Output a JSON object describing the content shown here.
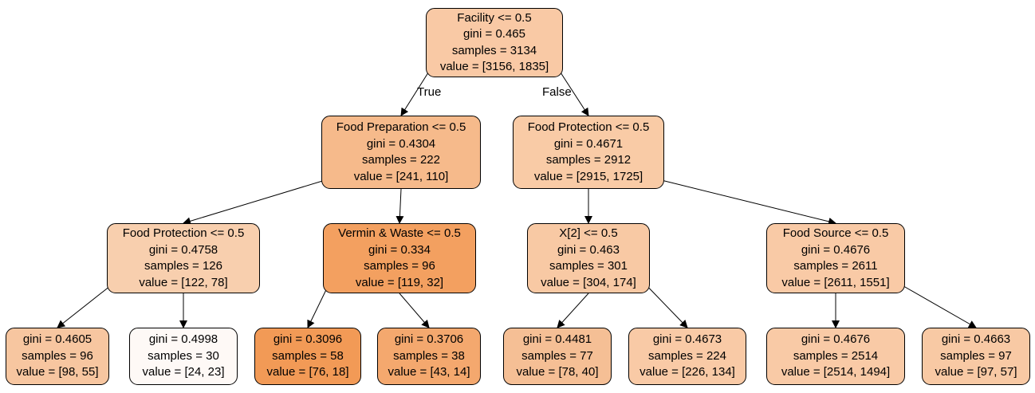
{
  "nodes": [
    {
      "id": "n0",
      "lines": [
        "Facility <= 0.5",
        "gini = 0.465",
        "samples = 3134",
        "value = [3156, 1835]"
      ],
      "fill": "#f9c9a5"
    },
    {
      "id": "n1",
      "lines": [
        "Food Preparation <= 0.5",
        "gini = 0.4304",
        "samples = 222",
        "value = [241, 110]"
      ],
      "fill": "#f6ba8b"
    },
    {
      "id": "n2",
      "lines": [
        "Food Protection <= 0.5",
        "gini = 0.4671",
        "samples = 2912",
        "value = [2915, 1725]"
      ],
      "fill": "#f9cba6"
    },
    {
      "id": "n3",
      "lines": [
        "Food Protection <= 0.5",
        "gini = 0.4758",
        "samples = 126",
        "value = [122, 78]"
      ],
      "fill": "#f8cfae"
    },
    {
      "id": "n4",
      "lines": [
        "Vermin & Waste <= 0.5",
        "gini = 0.334",
        "samples = 96",
        "value = [119, 32]"
      ],
      "fill": "#f3a060"
    },
    {
      "id": "n5",
      "lines": [
        "X[2] <= 0.5",
        "gini = 0.463",
        "samples = 301",
        "value = [304, 174]"
      ],
      "fill": "#f8c9a4"
    },
    {
      "id": "n6",
      "lines": [
        "Food Source <= 0.5",
        "gini = 0.4676",
        "samples = 2611",
        "value = [2611, 1551]"
      ],
      "fill": "#f9caa6"
    },
    {
      "id": "n7",
      "lines": [
        "gini = 0.4605",
        "samples = 96",
        "value = [98, 55]"
      ],
      "fill": "#f7c6a0"
    },
    {
      "id": "n8",
      "lines": [
        "gini = 0.4998",
        "samples = 30",
        "value = [24, 23]"
      ],
      "fill": "#fef9f6"
    },
    {
      "id": "n9",
      "lines": [
        "gini = 0.3096",
        "samples = 58",
        "value = [76, 18]"
      ],
      "fill": "#f29a56"
    },
    {
      "id": "n10",
      "lines": [
        "gini = 0.3706",
        "samples = 38",
        "value = [43, 14]"
      ],
      "fill": "#f4a86e"
    },
    {
      "id": "n11",
      "lines": [
        "gini = 0.4481",
        "samples = 77",
        "value = [78, 40]"
      ],
      "fill": "#f5bf95"
    },
    {
      "id": "n12",
      "lines": [
        "gini = 0.4673",
        "samples = 224",
        "value = [226, 134]"
      ],
      "fill": "#f9caa6"
    },
    {
      "id": "n13",
      "lines": [
        "gini = 0.4676",
        "samples = 2514",
        "value = [2514, 1494]"
      ],
      "fill": "#f9caa6"
    },
    {
      "id": "n14",
      "lines": [
        "gini = 0.4663",
        "samples = 97",
        "value = [97, 57]"
      ],
      "fill": "#f8c9a4"
    }
  ],
  "edges": [
    {
      "from": "n0",
      "to": "n1",
      "label": "True"
    },
    {
      "from": "n0",
      "to": "n2",
      "label": "False"
    },
    {
      "from": "n1",
      "to": "n3",
      "label": ""
    },
    {
      "from": "n1",
      "to": "n4",
      "label": ""
    },
    {
      "from": "n2",
      "to": "n5",
      "label": ""
    },
    {
      "from": "n2",
      "to": "n6",
      "label": ""
    },
    {
      "from": "n3",
      "to": "n7",
      "label": ""
    },
    {
      "from": "n3",
      "to": "n8",
      "label": ""
    },
    {
      "from": "n4",
      "to": "n9",
      "label": ""
    },
    {
      "from": "n4",
      "to": "n10",
      "label": ""
    },
    {
      "from": "n5",
      "to": "n11",
      "label": ""
    },
    {
      "from": "n5",
      "to": "n12",
      "label": ""
    },
    {
      "from": "n6",
      "to": "n13",
      "label": ""
    },
    {
      "from": "n6",
      "to": "n14",
      "label": ""
    }
  ]
}
